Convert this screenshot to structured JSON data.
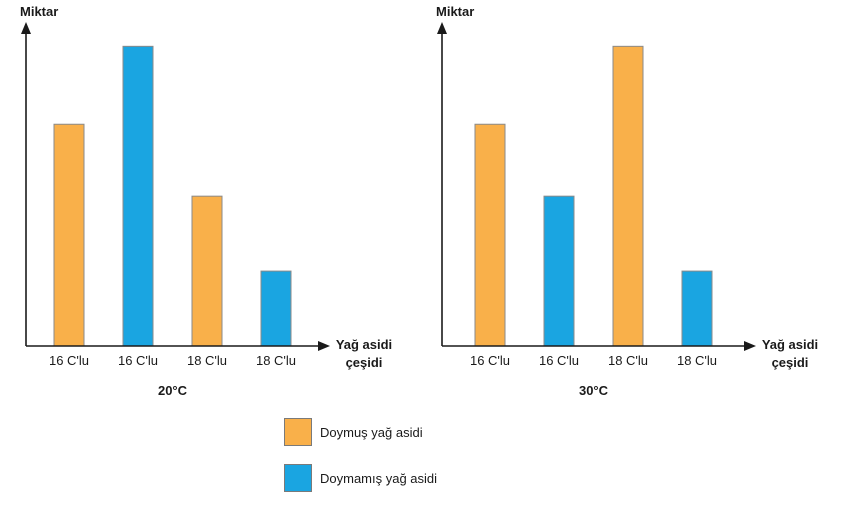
{
  "chart_data": [
    {
      "type": "bar",
      "title": "20°C",
      "ylabel": "Miktar",
      "xlabel": [
        "Yağ asidi",
        "çeşidi"
      ],
      "categories": [
        "16 C'lu",
        "16 C'lu",
        "18 C'lu",
        "18 C'lu"
      ],
      "bar_kinds": [
        "saturated",
        "unsaturated",
        "saturated",
        "unsaturated"
      ],
      "values": [
        7.4,
        10,
        5,
        2.5
      ],
      "ylim": [
        0,
        10.5
      ],
      "grid": false
    },
    {
      "type": "bar",
      "title": "30°C",
      "ylabel": "Miktar",
      "xlabel": [
        "Yağ asidi",
        "çeşidi"
      ],
      "categories": [
        "16 C'lu",
        "16 C'lu",
        "18 C'lu",
        "18 C'lu"
      ],
      "bar_kinds": [
        "saturated",
        "unsaturated",
        "saturated",
        "unsaturated"
      ],
      "values": [
        7.4,
        5,
        10,
        2.5
      ],
      "ylim": [
        0,
        10.5
      ],
      "grid": false
    }
  ],
  "legend": [
    {
      "kind": "saturated",
      "label": "Doymuş yağ asidi"
    },
    {
      "kind": "unsaturated",
      "label": "Doymamış yağ asidi"
    }
  ],
  "colors": {
    "saturated": "#F9B04A",
    "unsaturated": "#1AA5E1",
    "bar_stroke": "#8a8a8a",
    "axis": "#1a1a1a"
  }
}
